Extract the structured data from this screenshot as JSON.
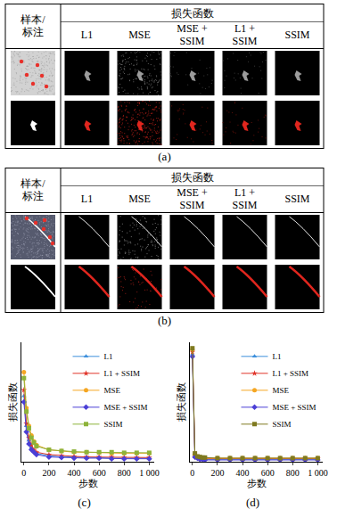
{
  "panels": [
    {
      "label": "(a)",
      "corner": "样本/标注",
      "group": "损失函数",
      "columns": [
        "L1",
        "MSE",
        "MSE + SSIM",
        "L1 + SSIM",
        "SSIM"
      ]
    },
    {
      "label": "(b)",
      "corner": "样本/标注",
      "group": "损失函数",
      "columns": [
        "L1",
        "MSE",
        "MSE + SSIM",
        "L1 + SSIM",
        "SSIM"
      ]
    }
  ],
  "chart_data": [
    {
      "type": "line",
      "label": "(c)",
      "x_label": "步数",
      "y_label": "损失函数",
      "x": [
        0,
        20,
        40,
        60,
        80,
        100,
        200,
        300,
        400,
        500,
        600,
        700,
        800,
        900,
        1000
      ],
      "xlim": [
        -20,
        1040
      ],
      "xticks": [
        0,
        200,
        400,
        600,
        800,
        {
          "value": 1000,
          "label": "1 000"
        }
      ],
      "ylim": [
        0,
        1
      ],
      "tick_labels": "x",
      "grid": false,
      "legend": "upper right",
      "series": [
        {
          "name": "L1",
          "color": "#3d8fdc",
          "marker": "triangle-up",
          "values": [
            0.55,
            0.3,
            0.18,
            0.12,
            0.09,
            0.07,
            0.05,
            0.04,
            0.04,
            0.035,
            0.03,
            0.03,
            0.03,
            0.03,
            0.03
          ]
        },
        {
          "name": "L1 + SSIM",
          "color": "#e0342a",
          "marker": "star",
          "values": [
            0.6,
            0.32,
            0.2,
            0.14,
            0.1,
            0.08,
            0.06,
            0.05,
            0.045,
            0.04,
            0.04,
            0.04,
            0.035,
            0.035,
            0.035
          ]
        },
        {
          "name": "MSE",
          "color": "#f5a623",
          "marker": "circle",
          "values": [
            0.75,
            0.45,
            0.3,
            0.22,
            0.17,
            0.14,
            0.1,
            0.09,
            0.08,
            0.08,
            0.075,
            0.07,
            0.07,
            0.07,
            0.07
          ]
        },
        {
          "name": "MSE + SSIM",
          "color": "#4b3fd6",
          "marker": "diamond",
          "values": [
            0.5,
            0.25,
            0.15,
            0.1,
            0.08,
            0.06,
            0.04,
            0.035,
            0.03,
            0.03,
            0.03,
            0.025,
            0.025,
            0.025,
            0.025
          ]
        },
        {
          "name": "SSIM",
          "color": "#8db33a",
          "marker": "square",
          "values": [
            0.7,
            0.42,
            0.28,
            0.2,
            0.16,
            0.13,
            0.1,
            0.09,
            0.085,
            0.08,
            0.08,
            0.08,
            0.075,
            0.075,
            0.075
          ]
        }
      ]
    },
    {
      "type": "line",
      "label": "(d)",
      "x_label": "步数",
      "y_label": "损失函数",
      "x": [
        0,
        20,
        40,
        60,
        80,
        100,
        200,
        300,
        400,
        500,
        600,
        700,
        800,
        900,
        1000
      ],
      "xlim": [
        -20,
        1040
      ],
      "xticks": [
        0,
        200,
        400,
        600,
        800,
        {
          "value": 1000,
          "label": "1 000"
        }
      ],
      "ylim": [
        0,
        1
      ],
      "tick_labels": "x",
      "grid": false,
      "legend": "upper right",
      "series": [
        {
          "name": "L1",
          "color": "#3d8fdc",
          "marker": "triangle-up",
          "values": [
            0.9,
            0.04,
            0.03,
            0.025,
            0.02,
            0.02,
            0.02,
            0.02,
            0.02,
            0.02,
            0.02,
            0.02,
            0.02,
            0.02,
            0.02
          ]
        },
        {
          "name": "L1 + SSIM",
          "color": "#e0342a",
          "marker": "star",
          "values": [
            0.92,
            0.05,
            0.035,
            0.03,
            0.025,
            0.025,
            0.025,
            0.025,
            0.025,
            0.025,
            0.025,
            0.025,
            0.025,
            0.025,
            0.025
          ]
        },
        {
          "name": "MSE",
          "color": "#f5a623",
          "marker": "circle",
          "values": [
            0.94,
            0.06,
            0.04,
            0.035,
            0.03,
            0.03,
            0.03,
            0.03,
            0.03,
            0.03,
            0.03,
            0.03,
            0.03,
            0.03,
            0.03
          ]
        },
        {
          "name": "MSE + SSIM",
          "color": "#4b3fd6",
          "marker": "diamond",
          "values": [
            0.88,
            0.04,
            0.03,
            0.02,
            0.02,
            0.015,
            0.015,
            0.015,
            0.015,
            0.015,
            0.015,
            0.015,
            0.015,
            0.015,
            0.015
          ]
        },
        {
          "name": "SSIM",
          "color": "#7f7a20",
          "marker": "square",
          "values": [
            0.95,
            0.07,
            0.045,
            0.04,
            0.035,
            0.035,
            0.03,
            0.03,
            0.03,
            0.03,
            0.03,
            0.03,
            0.03,
            0.03,
            0.03
          ]
        }
      ]
    }
  ]
}
